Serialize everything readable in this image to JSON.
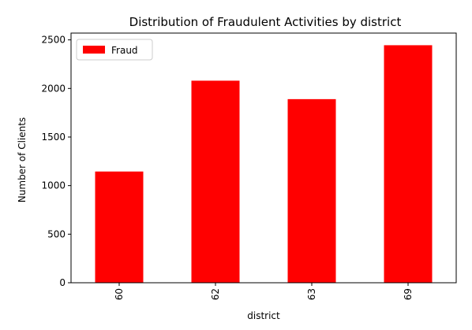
{
  "chart_data": {
    "type": "bar",
    "title": "Distribution of Fraudulent Activities by district",
    "xlabel": "district",
    "ylabel": "Number of Clients",
    "categories": [
      "60",
      "62",
      "63",
      "69"
    ],
    "series": [
      {
        "name": "Fraud",
        "values": [
          1145,
          2080,
          1890,
          2445
        ],
        "color": "#ff0000"
      }
    ],
    "ylim": [
      0,
      2570
    ],
    "yticks": [
      0,
      500,
      1000,
      1500,
      2000,
      2500
    ],
    "grid": false,
    "legend": "upper-left",
    "x_tick_rotation": 90
  }
}
